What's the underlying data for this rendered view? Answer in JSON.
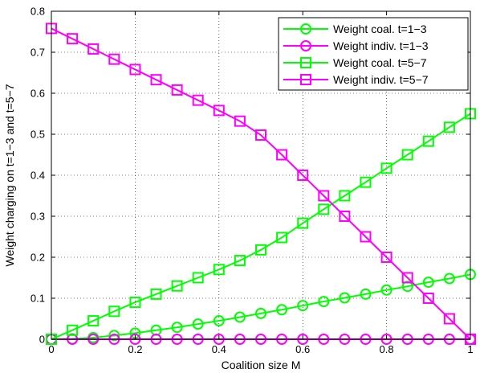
{
  "chart_data": {
    "type": "line",
    "title": "",
    "xlabel": "Coalition size M",
    "ylabel": "Weight charging on t=1−3 and t=5−7",
    "xlim": [
      0,
      1
    ],
    "ylim": [
      0,
      0.8
    ],
    "xticks": [
      0,
      0.2,
      0.4,
      0.6,
      0.8,
      1
    ],
    "xtick_labels": [
      "0",
      "0.2",
      "0.4",
      "0.6",
      "0.8",
      "1"
    ],
    "yticks": [
      0,
      0.1,
      0.2,
      0.3,
      0.4,
      0.5,
      0.6,
      0.7,
      0.8
    ],
    "ytick_labels": [
      "0",
      "0.1",
      "0.2",
      "0.3",
      "0.4",
      "0.5",
      "0.6",
      "0.7",
      "0.8"
    ],
    "grid": true,
    "legend_position": "top-right",
    "x": [
      0,
      0.05,
      0.1,
      0.15,
      0.2,
      0.25,
      0.3,
      0.35,
      0.4,
      0.45,
      0.5,
      0.55,
      0.6,
      0.65,
      0.7,
      0.75,
      0.8,
      0.85,
      0.9,
      0.95,
      1
    ],
    "series": [
      {
        "name": "Weight coal. t=1−3",
        "color": "#00ff00",
        "marker": "circle",
        "values": [
          0,
          0.001,
          0.004,
          0.009,
          0.015,
          0.022,
          0.029,
          0.037,
          0.045,
          0.054,
          0.063,
          0.072,
          0.082,
          0.092,
          0.101,
          0.11,
          0.12,
          0.129,
          0.139,
          0.148,
          0.158
        ]
      },
      {
        "name": "Weight indiv. t=1−3",
        "color": "#ff00ff",
        "marker": "circle",
        "values": [
          0,
          0,
          0,
          0,
          0,
          0,
          0,
          0,
          0,
          0,
          0,
          0,
          0,
          0,
          0,
          0,
          0,
          0,
          0,
          0,
          0
        ]
      },
      {
        "name": "Weight coal. t=5−7",
        "color": "#00ff00",
        "marker": "square",
        "values": [
          0,
          0.022,
          0.045,
          0.068,
          0.09,
          0.11,
          0.13,
          0.15,
          0.17,
          0.192,
          0.218,
          0.248,
          0.283,
          0.317,
          0.35,
          0.383,
          0.417,
          0.45,
          0.483,
          0.517,
          0.55
        ]
      },
      {
        "name": "Weight indiv. t=5−7",
        "color": "#ff00ff",
        "marker": "square",
        "values": [
          0.758,
          0.733,
          0.708,
          0.683,
          0.658,
          0.633,
          0.608,
          0.583,
          0.558,
          0.532,
          0.498,
          0.45,
          0.4,
          0.35,
          0.3,
          0.25,
          0.2,
          0.15,
          0.1,
          0.05,
          0
        ]
      }
    ]
  }
}
